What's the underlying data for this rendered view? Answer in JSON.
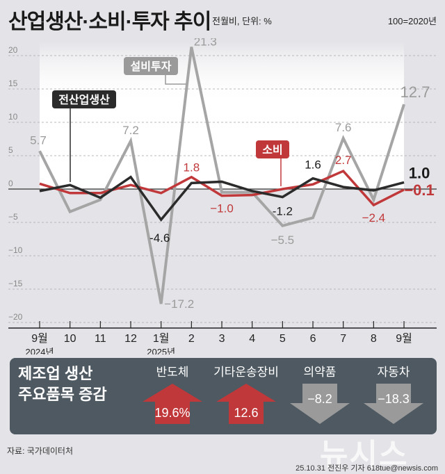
{
  "header": {
    "title": "산업생산·소비·투자 추이",
    "subtitle": "전월비, 단위: %",
    "base": "100=2020년"
  },
  "chart_data": {
    "type": "line",
    "title": "산업생산·소비·투자 추이",
    "subtitle": "전월비, 단위: %",
    "base_note": "100=2020년",
    "categories": [
      "9월",
      "10",
      "11",
      "12",
      "1월",
      "2",
      "3",
      "4",
      "5",
      "6",
      "7",
      "8",
      "9월"
    ],
    "year_labels": [
      {
        "index": 0,
        "label": "2024년"
      },
      {
        "index": 4,
        "label": "2025년"
      }
    ],
    "ylim": [
      -20,
      20
    ],
    "yticks": [
      20,
      15,
      10,
      5,
      0,
      -5,
      -10,
      -15,
      -20
    ],
    "grid": true,
    "series": [
      {
        "name": "전산업생산",
        "color": "#2b2b2b",
        "values": [
          -0.3,
          0.6,
          -1.3,
          1.8,
          -4.6,
          0.9,
          1.1,
          -0.3,
          -1.2,
          1.6,
          0.3,
          -0.2,
          1.0
        ]
      },
      {
        "name": "소비",
        "color": "#c0383a",
        "values": [
          0.8,
          -0.6,
          -0.6,
          0.6,
          -0.6,
          1.8,
          -1.0,
          -0.9,
          0.0,
          0.7,
          2.7,
          -2.4,
          -0.1
        ]
      },
      {
        "name": "설비투자",
        "color": "#a5a5a5",
        "values": [
          5.7,
          -3.4,
          -1.6,
          7.2,
          -17.2,
          21.3,
          -0.5,
          -0.5,
          -5.5,
          -4.3,
          7.6,
          -1.6,
          12.7
        ]
      }
    ],
    "annotations": [
      {
        "series": "설비투자",
        "index": 0,
        "label": "5.7"
      },
      {
        "series": "설비투자",
        "index": 3,
        "label": "7.2"
      },
      {
        "series": "설비투자",
        "index": 4,
        "label": "−17.2"
      },
      {
        "series": "설비투자",
        "index": 5,
        "label": "21.3"
      },
      {
        "series": "설비투자",
        "index": 8,
        "label": "−5.5"
      },
      {
        "series": "설비투자",
        "index": 10,
        "label": "7.6"
      },
      {
        "series": "설비투자",
        "index": 12,
        "label": "12.7"
      },
      {
        "series": "전산업생산",
        "index": 4,
        "label": "-4.6"
      },
      {
        "series": "전산업생산",
        "index": 8,
        "label": "-1.2"
      },
      {
        "series": "전산업생산",
        "index": 9,
        "label": "1.6"
      },
      {
        "series": "전산업생산",
        "index": 12,
        "label": "1.0"
      },
      {
        "series": "소비",
        "index": 5,
        "label": "1.8"
      },
      {
        "series": "소비",
        "index": 6,
        "label": "−1.0"
      },
      {
        "series": "소비",
        "index": 10,
        "label": "2.7"
      },
      {
        "series": "소비",
        "index": 11,
        "label": "−2.4"
      },
      {
        "series": "소비",
        "index": 12,
        "label": "−0.1"
      }
    ],
    "legend_tags": [
      {
        "name": "전산업생산",
        "color": "#2b2b2b"
      },
      {
        "name": "설비투자",
        "color": "#9a9a9a"
      },
      {
        "name": "소비",
        "color": "#c0383a"
      }
    ]
  },
  "panel": {
    "title_line1": "제조업 생산",
    "title_line2": "주요품목 증감",
    "items": [
      {
        "label": "반도체",
        "value": "19.6%",
        "direction": "up",
        "color": "#c0383a"
      },
      {
        "label": "기타운송장비",
        "value": "12.6",
        "direction": "up",
        "color": "#c0383a"
      },
      {
        "label": "의약품",
        "value": "−8.2",
        "direction": "down",
        "color": "#9a9a9a"
      },
      {
        "label": "자동차",
        "value": "−18.3",
        "direction": "down",
        "color": "#9a9a9a"
      }
    ]
  },
  "footer": {
    "source": "자료: 국가데이터처",
    "credit": "25.10.31 전진우 기자 618tue@newsis.com",
    "watermark": "뉴시스"
  }
}
